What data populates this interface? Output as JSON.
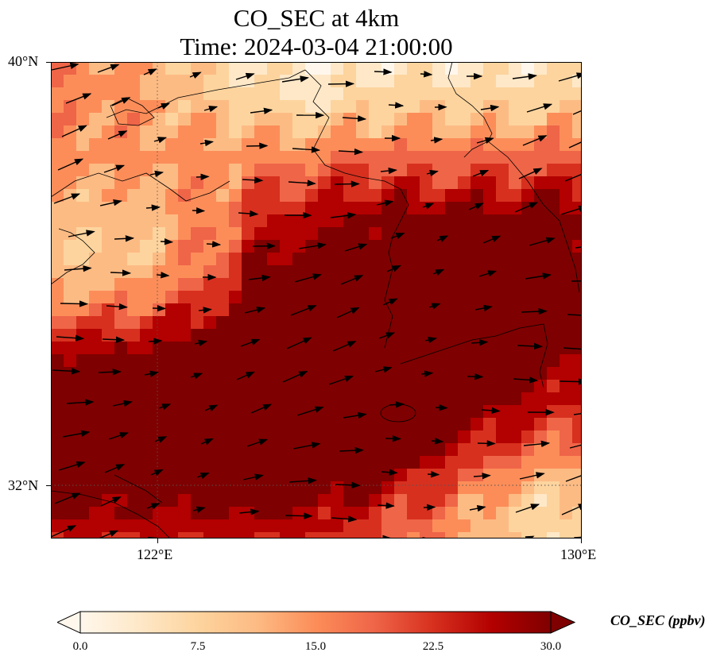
{
  "title": {
    "line1": "CO_SEC at 4km",
    "line2": "Time: 2024-03-04 21:00:00"
  },
  "map": {
    "lat_range": [
      31,
      40
    ],
    "lon_range": [
      120,
      130
    ],
    "lat_ticks": [
      {
        "value": 40,
        "label": "40°N"
      },
      {
        "value": 32,
        "label": "32°N"
      }
    ],
    "lon_ticks": [
      {
        "value": 122,
        "label": "122°E"
      },
      {
        "value": 130,
        "label": "130°E"
      }
    ],
    "gridlines": "dotted",
    "coastlines": true,
    "wind_vectors": true,
    "wind_direction": "mostly westerly to west-southwesterly"
  },
  "colorbar": {
    "label": "CO_SEC (ppbv)",
    "min": 0.0,
    "max": 30.0,
    "extend": "both",
    "ticks": [
      "0.0",
      "7.5",
      "15.0",
      "22.5",
      "30.0"
    ],
    "colormap": "OrRd",
    "colors": [
      "#fff7ec",
      "#fee8c8",
      "#fdd49e",
      "#fdbb84",
      "#fc8d59",
      "#ef6548",
      "#d7301f",
      "#b30000",
      "#7f0000"
    ]
  }
}
